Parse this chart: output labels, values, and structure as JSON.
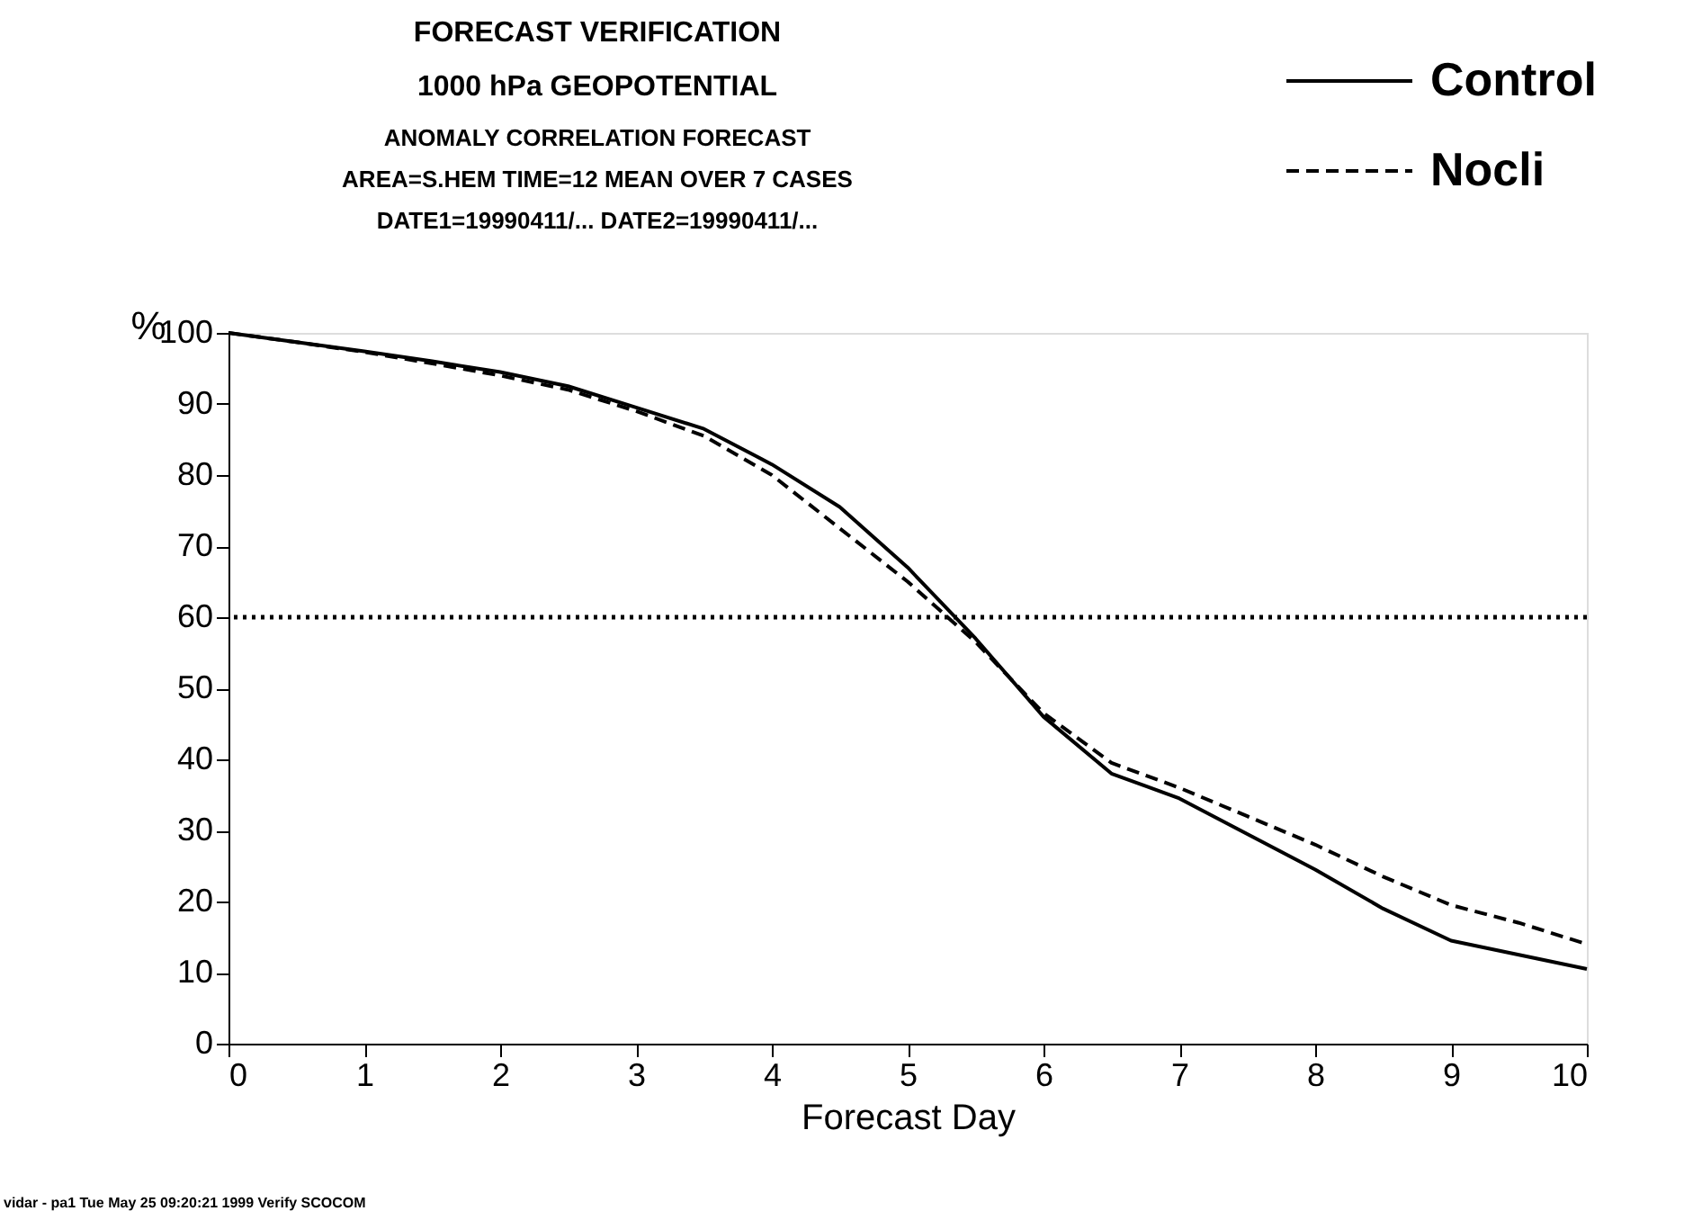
{
  "chart_data": {
    "type": "line",
    "title": [
      "FORECAST VERIFICATION",
      "1000 hPa GEOPOTENTIAL"
    ],
    "subtitle": [
      "ANOMALY CORRELATION FORECAST",
      "AREA=S.HEM TIME=12 MEAN OVER 7 CASES",
      "DATE1=19990411/... DATE2=19990411/..."
    ],
    "xlabel": "Forecast Day",
    "ylabel": "%",
    "x": [
      0,
      0.5,
      1,
      1.5,
      2,
      2.5,
      3,
      3.5,
      4,
      4.5,
      5,
      5.5,
      6,
      6.5,
      7,
      7.5,
      8,
      8.5,
      9,
      9.5,
      10
    ],
    "series": [
      {
        "name": "Control",
        "color": "#000000",
        "line_style": "solid",
        "values": [
          100,
          98.7,
          97.4,
          96,
          94.5,
          92.5,
          89.5,
          86.5,
          81.5,
          75.5,
          67,
          57,
          46,
          38,
          34.5,
          29.5,
          24.5,
          19,
          14.5,
          12.5,
          10.5
        ]
      },
      {
        "name": "Nocli",
        "color": "#000000",
        "line_style": "dashed",
        "values": [
          100,
          98.7,
          97.3,
          95.7,
          94,
          92,
          89,
          85.5,
          80,
          72.5,
          65,
          56.5,
          46.5,
          39.5,
          36,
          32,
          28,
          23.5,
          19.5,
          17,
          14
        ]
      }
    ],
    "xlim": [
      0,
      10
    ],
    "xticks": [
      0,
      1,
      2,
      3,
      4,
      5,
      6,
      7,
      8,
      9,
      10
    ],
    "ylim": [
      0,
      100
    ],
    "yticks": [
      0,
      10,
      20,
      30,
      40,
      50,
      60,
      70,
      80,
      90,
      100
    ],
    "ref_lines": [
      {
        "axis": "y",
        "value": 60,
        "color": "#000000",
        "line_style": "dotted"
      }
    ],
    "annotations": [
      "vidar - pa1 Tue May 25 09:20:21 1999 Verify SCOCOM"
    ],
    "grid": false,
    "legend": "top right",
    "marker": "none"
  }
}
